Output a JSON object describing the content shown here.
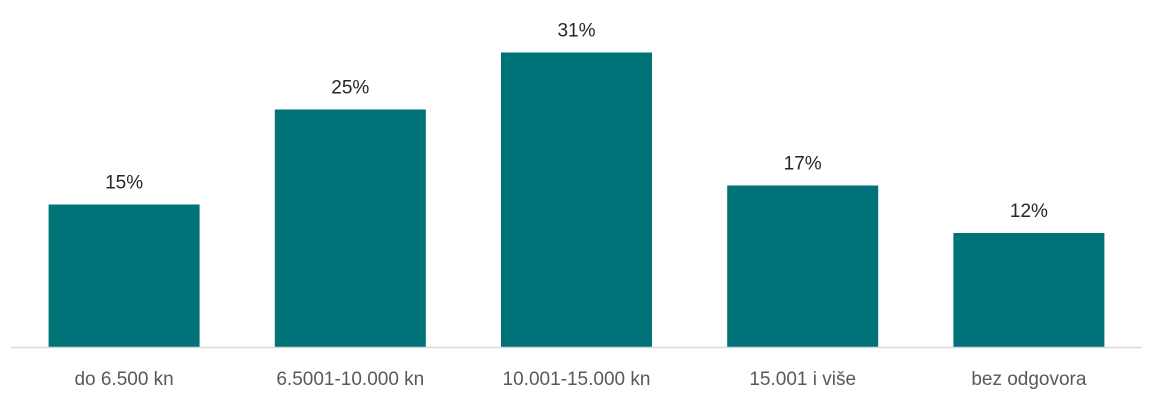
{
  "chart_data": {
    "type": "bar",
    "categories": [
      "do 6.500 kn",
      "6.5001-10.000 kn",
      "10.001-15.000 kn",
      "15.001 i više",
      "bez odgovora"
    ],
    "values": [
      15,
      25,
      31,
      17,
      12
    ],
    "value_labels": [
      "15%",
      "25%",
      "31%",
      "17%",
      "12%"
    ],
    "unit": "%",
    "title": "",
    "xlabel": "",
    "ylabel": "",
    "ylim": [
      0,
      33
    ],
    "grid": false,
    "legend": "none",
    "bar_color": "#007378",
    "axis_color": "#d9d9d9"
  }
}
